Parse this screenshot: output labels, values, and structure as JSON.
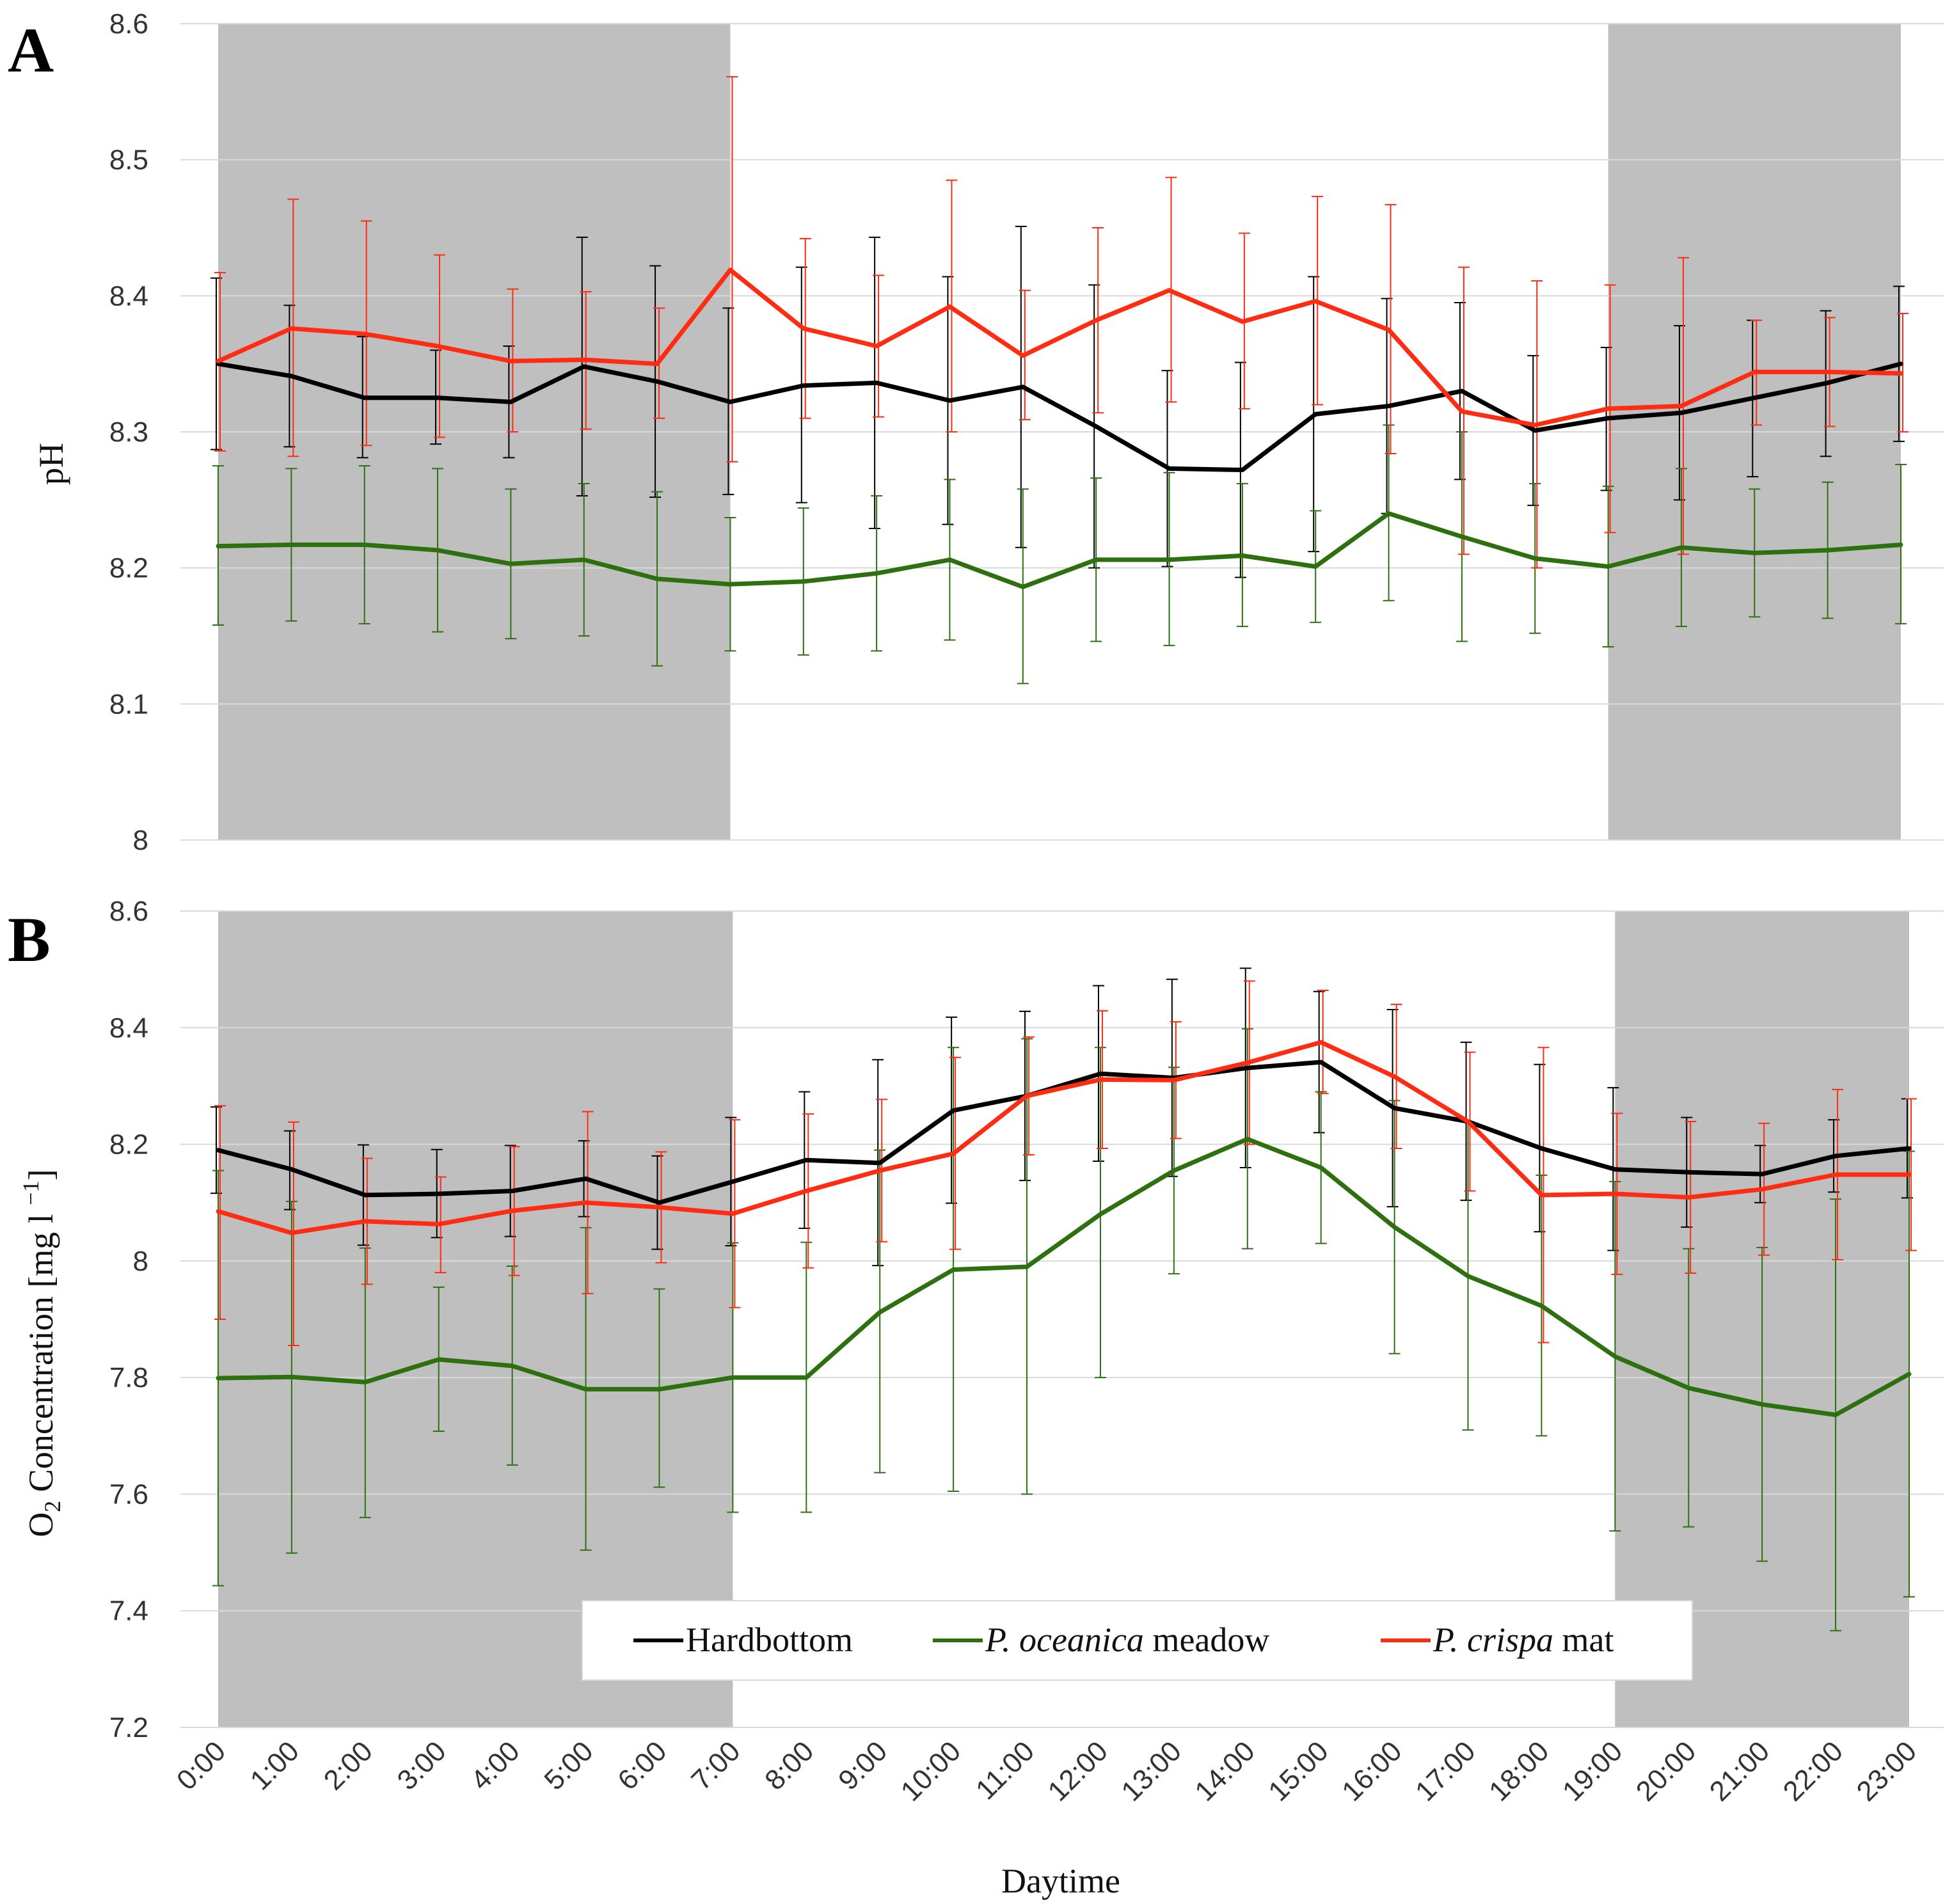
{
  "figure": {
    "panel_a_letter": "A",
    "panel_b_letter": "B",
    "xlabel": "Daytime",
    "hours": [
      "0:00",
      "1:00",
      "2:00",
      "3:00",
      "4:00",
      "5:00",
      "6:00",
      "7:00",
      "8:00",
      "9:00",
      "10:00",
      "11:00",
      "12:00",
      "13:00",
      "14:00",
      "15:00",
      "16:00",
      "17:00",
      "18:00",
      "19:00",
      "20:00",
      "21:00",
      "22:00",
      "23:00"
    ],
    "legend": {
      "hardbottom": "Hardbottom",
      "oceanica_italic": "P. oceanica",
      "oceanica_rest": " meadow",
      "crispa_italic": "P. crispa",
      "crispa_rest": " mat"
    },
    "colors": {
      "hardbottom": "#000000",
      "oceanica": "#2e7010",
      "crispa": "#fd2c12",
      "night_shading": "#bfbfbf",
      "grid": "#d9d9d9"
    }
  },
  "chart_data": [
    {
      "type": "line",
      "panel": "A",
      "ylabel": "pH",
      "ylim": [
        8,
        8.6
      ],
      "yticks": [
        "8",
        "8.1",
        "8.2",
        "8.3",
        "8.4",
        "8.5",
        "8.6"
      ],
      "grid": true,
      "night_shading_hours": [
        [
          0,
          7
        ],
        [
          19,
          23
        ]
      ],
      "x": [
        "0:00",
        "1:00",
        "2:00",
        "3:00",
        "4:00",
        "5:00",
        "6:00",
        "7:00",
        "8:00",
        "9:00",
        "10:00",
        "11:00",
        "12:00",
        "13:00",
        "14:00",
        "15:00",
        "16:00",
        "17:00",
        "18:00",
        "19:00",
        "20:00",
        "21:00",
        "22:00",
        "23:00"
      ],
      "series": [
        {
          "name": "Hardbottom",
          "values": [
            8.35,
            8.341,
            8.325,
            8.325,
            8.322,
            8.348,
            8.337,
            8.322,
            8.334,
            8.336,
            8.323,
            8.333,
            8.304,
            8.273,
            8.272,
            8.313,
            8.319,
            8.33,
            8.301,
            8.31,
            8.314,
            8.325,
            8.336,
            8.35
          ],
          "err_upper": [
            8.413,
            8.393,
            8.37,
            8.36,
            8.363,
            8.443,
            8.422,
            8.391,
            8.421,
            8.443,
            8.414,
            8.451,
            8.408,
            8.345,
            8.351,
            8.414,
            8.398,
            8.395,
            8.356,
            8.362,
            8.378,
            8.382,
            8.389,
            8.407
          ],
          "err_lower": [
            8.287,
            8.289,
            8.281,
            8.291,
            8.281,
            8.253,
            8.252,
            8.254,
            8.248,
            8.229,
            8.232,
            8.215,
            8.2,
            8.201,
            8.193,
            8.212,
            8.24,
            8.265,
            8.246,
            8.257,
            8.25,
            8.267,
            8.282,
            8.293
          ]
        },
        {
          "name": "P. oceanica meadow",
          "values": [
            8.216,
            8.217,
            8.217,
            8.213,
            8.203,
            8.206,
            8.192,
            8.188,
            8.19,
            8.196,
            8.206,
            8.186,
            8.206,
            8.206,
            8.209,
            8.201,
            8.24,
            8.223,
            8.207,
            8.201,
            8.215,
            8.211,
            8.213,
            8.217
          ],
          "err_upper": [
            8.275,
            8.273,
            8.275,
            8.273,
            8.258,
            8.262,
            8.256,
            8.237,
            8.244,
            8.253,
            8.265,
            8.258,
            8.266,
            8.27,
            8.262,
            8.242,
            8.305,
            8.3,
            8.262,
            8.26,
            8.273,
            8.258,
            8.263,
            8.276
          ],
          "err_lower": [
            8.158,
            8.161,
            8.159,
            8.153,
            8.148,
            8.15,
            8.128,
            8.139,
            8.136,
            8.139,
            8.147,
            8.115,
            8.146,
            8.143,
            8.157,
            8.16,
            8.176,
            8.146,
            8.152,
            8.142,
            8.157,
            8.164,
            8.163,
            8.159
          ]
        },
        {
          "name": "P. crispa mat",
          "values": [
            8.352,
            8.376,
            8.372,
            8.363,
            8.352,
            8.353,
            8.35,
            8.419,
            8.376,
            8.363,
            8.392,
            8.356,
            8.382,
            8.404,
            8.381,
            8.396,
            8.375,
            8.315,
            8.305,
            8.317,
            8.319,
            8.344,
            8.344,
            8.343
          ],
          "err_upper": [
            8.417,
            8.471,
            8.455,
            8.43,
            8.405,
            8.403,
            8.391,
            8.561,
            8.442,
            8.415,
            8.485,
            8.404,
            8.45,
            8.487,
            8.446,
            8.473,
            8.467,
            8.421,
            8.411,
            8.408,
            8.428,
            8.382,
            8.384,
            8.387
          ],
          "err_lower": [
            8.286,
            8.282,
            8.29,
            8.296,
            8.3,
            8.302,
            8.31,
            8.278,
            8.31,
            8.311,
            8.3,
            8.309,
            8.314,
            8.322,
            8.317,
            8.32,
            8.284,
            8.21,
            8.2,
            8.226,
            8.21,
            8.305,
            8.304,
            8.3
          ]
        }
      ]
    },
    {
      "type": "line",
      "panel": "B",
      "ylabel_main": "O",
      "ylabel_sub": "2",
      "ylabel_rest": " Concentration [mg l ",
      "ylabel_sup": "−1",
      "ylabel_end": "]",
      "ylim": [
        7.2,
        8.6
      ],
      "yticks": [
        "7.2",
        "7.4",
        "7.6",
        "7.8",
        "8",
        "8.2",
        "8.4",
        "8.6"
      ],
      "grid": true,
      "night_shading_hours": [
        [
          0,
          7
        ],
        [
          19,
          23
        ]
      ],
      "x": [
        "0:00",
        "1:00",
        "2:00",
        "3:00",
        "4:00",
        "5:00",
        "6:00",
        "7:00",
        "8:00",
        "9:00",
        "10:00",
        "11:00",
        "12:00",
        "13:00",
        "14:00",
        "15:00",
        "16:00",
        "17:00",
        "18:00",
        "19:00",
        "20:00",
        "21:00",
        "22:00",
        "23:00"
      ],
      "series": [
        {
          "name": "Hardbottom",
          "values": [
            8.19,
            8.157,
            8.113,
            8.115,
            8.12,
            8.141,
            8.1,
            8.136,
            8.173,
            8.168,
            8.258,
            8.283,
            8.321,
            8.314,
            8.331,
            8.341,
            8.262,
            8.239,
            8.193,
            8.157,
            8.152,
            8.149,
            8.18,
            8.193
          ],
          "err_upper": [
            8.264,
            8.223,
            8.199,
            8.191,
            8.198,
            8.206,
            8.18,
            8.246,
            8.29,
            8.345,
            8.418,
            8.428,
            8.472,
            8.483,
            8.502,
            8.462,
            8.431,
            8.375,
            8.337,
            8.297,
            8.246,
            8.198,
            8.242,
            8.278
          ],
          "err_lower": [
            8.116,
            8.088,
            8.027,
            8.04,
            8.042,
            8.076,
            8.02,
            8.026,
            8.056,
            7.992,
            8.099,
            8.138,
            8.171,
            8.145,
            8.16,
            8.22,
            8.093,
            8.104,
            8.05,
            8.018,
            8.058,
            8.1,
            8.118,
            8.108
          ]
        },
        {
          "name": "P. oceanica meadow",
          "values": [
            7.799,
            7.801,
            7.792,
            7.831,
            7.82,
            7.78,
            7.78,
            7.8,
            7.8,
            7.912,
            7.985,
            7.99,
            8.08,
            8.155,
            8.209,
            8.16,
            8.058,
            7.974,
            7.923,
            7.836,
            7.782,
            7.754,
            7.736,
            7.806
          ],
          "err_upper": [
            8.155,
            8.102,
            8.022,
            7.955,
            7.991,
            8.057,
            7.952,
            8.031,
            8.032,
            8.19,
            8.366,
            8.381,
            8.366,
            8.332,
            8.398,
            8.29,
            8.275,
            8.238,
            8.147,
            8.136,
            8.021,
            8.023,
            8.106,
            8.188
          ],
          "err_lower": [
            7.443,
            7.499,
            7.56,
            7.708,
            7.65,
            7.504,
            7.612,
            7.569,
            7.569,
            7.637,
            7.605,
            7.6,
            7.8,
            7.978,
            8.021,
            8.03,
            7.841,
            7.71,
            7.7,
            7.537,
            7.544,
            7.485,
            7.366,
            7.424
          ]
        },
        {
          "name": "P. crispa mat",
          "values": [
            8.085,
            8.048,
            8.068,
            8.063,
            8.086,
            8.1,
            8.092,
            8.081,
            8.12,
            8.155,
            8.184,
            8.283,
            8.311,
            8.31,
            8.34,
            8.375,
            8.316,
            8.239,
            8.113,
            8.115,
            8.109,
            8.123,
            8.148,
            8.148
          ],
          "err_upper": [
            8.266,
            8.238,
            8.176,
            8.144,
            8.196,
            8.256,
            8.187,
            8.242,
            8.252,
            8.277,
            8.349,
            8.384,
            8.429,
            8.41,
            8.48,
            8.464,
            8.44,
            8.358,
            8.366,
            8.253,
            8.239,
            8.236,
            8.294,
            8.278
          ],
          "err_lower": [
            7.9,
            7.855,
            7.96,
            7.98,
            7.975,
            7.944,
            7.997,
            7.92,
            7.988,
            8.033,
            8.02,
            8.182,
            8.193,
            8.21,
            8.2,
            8.287,
            8.193,
            8.12,
            7.86,
            7.977,
            7.979,
            8.01,
            8.002,
            8.018
          ]
        }
      ]
    }
  ]
}
